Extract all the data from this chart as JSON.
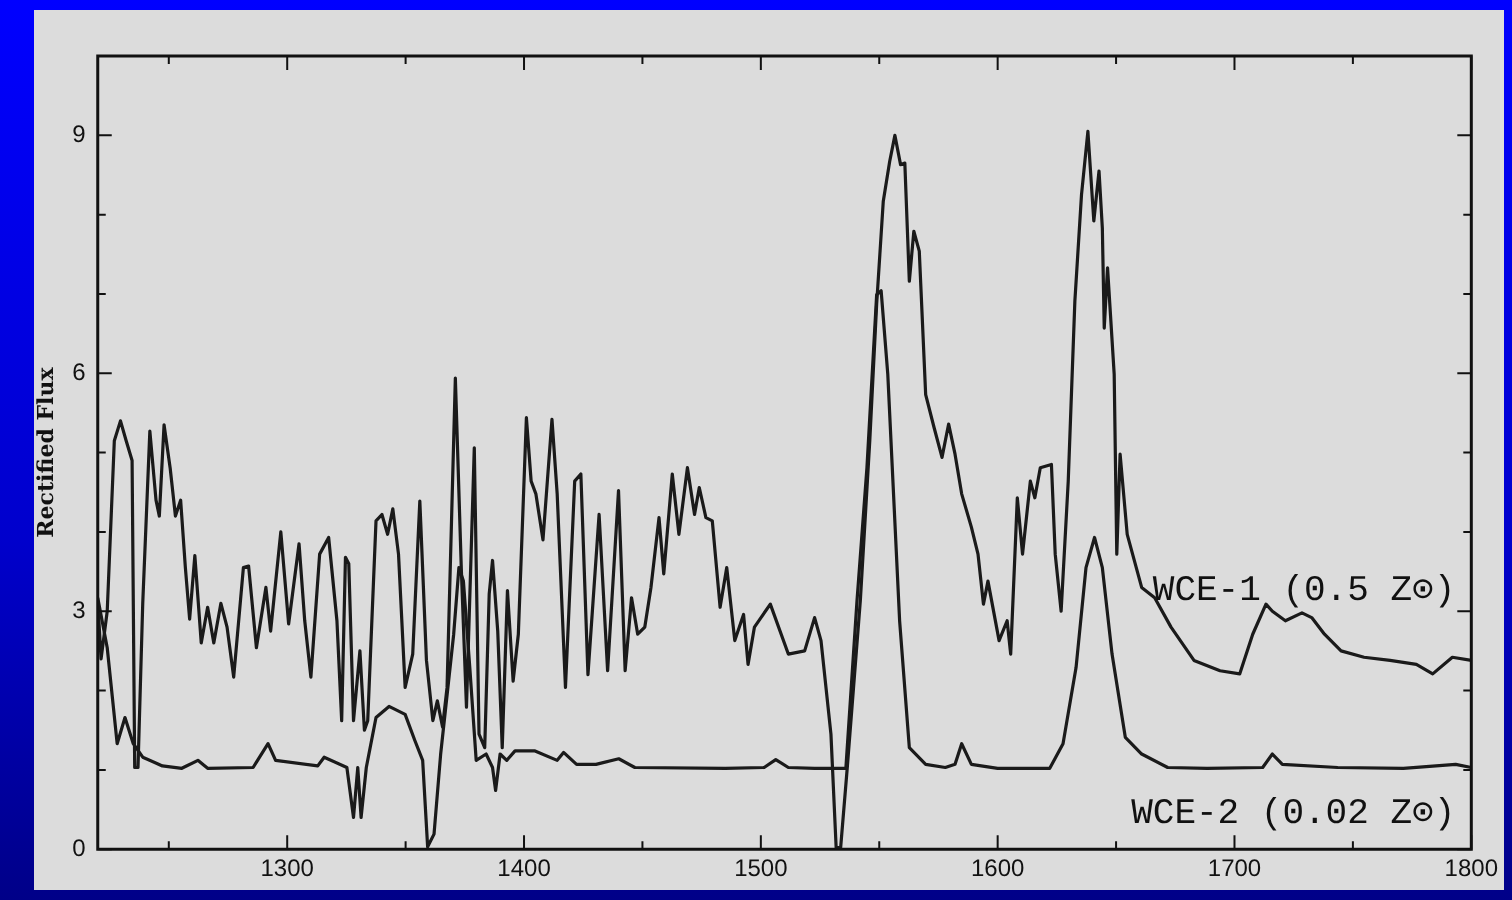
{
  "chart_data": {
    "type": "line",
    "ylabel": "Rectified Flux",
    "xlim": [
      1220,
      1800
    ],
    "ylim": [
      0,
      10
    ],
    "xticks": [
      {
        "value": 1250,
        "label": null
      },
      1300,
      {
        "value": 1350,
        "label": null
      },
      1400,
      {
        "value": 1450,
        "label": null
      },
      1500,
      {
        "value": 1550,
        "label": null
      },
      1600,
      {
        "value": 1650,
        "label": null
      },
      1700,
      {
        "value": 1750,
        "label": null
      },
      1800
    ],
    "yticks": [
      0,
      {
        "value": 1,
        "label": null
      },
      {
        "value": 2,
        "label": null
      },
      3,
      {
        "value": 4,
        "label": null
      },
      {
        "value": 5,
        "label": null
      },
      6,
      {
        "value": 7,
        "label": null
      },
      {
        "value": 8,
        "label": null
      },
      9
    ],
    "grid": false,
    "legend": "right",
    "marker": "none",
    "line_style": "solid",
    "series": [
      {
        "name": "WCE-1 (0.5 Z⊙)",
        "color": "#1a1a1a",
        "x": [
          1220,
          1221.4,
          1224,
          1227,
          1229.6,
          1232,
          1234.5,
          1235.6,
          1237,
          1239,
          1242,
          1244.6,
          1246,
          1248,
          1250.6,
          1252.8,
          1255,
          1257,
          1258.8,
          1261,
          1263.7,
          1266.4,
          1269,
          1272,
          1274.6,
          1277.4,
          1281.5,
          1283.7,
          1287,
          1291,
          1293,
          1297.3,
          1300.6,
          1305,
          1307.4,
          1310,
          1313.7,
          1317.5,
          1321,
          1323,
          1324.6,
          1326,
          1328,
          1330.7,
          1332.6,
          1334,
          1337.5,
          1340,
          1342.4,
          1344.6,
          1347,
          1349.8,
          1353,
          1356,
          1358.8,
          1361.5,
          1363.4,
          1365.6,
          1367.5,
          1371,
          1373.5,
          1375.7,
          1379,
          1381,
          1383.4,
          1385.3,
          1386.7,
          1388.9,
          1390.8,
          1393,
          1395.4,
          1397.6,
          1401,
          1403,
          1405,
          1408,
          1411.8,
          1414,
          1417.5,
          1421.4,
          1424,
          1427,
          1431.7,
          1435.3,
          1439.9,
          1442.7,
          1445.4,
          1448,
          1451,
          1453.6,
          1457,
          1459,
          1462.6,
          1465.4,
          1469,
          1472,
          1474,
          1476.8,
          1479.5,
          1482.8,
          1485.6,
          1489,
          1492.7,
          1494.6,
          1497.3,
          1504,
          1511.6,
          1518.5,
          1522.7,
          1525.4,
          1529.6,
          1531.8,
          1533.7,
          1536.5,
          1542,
          1546,
          1548.9,
          1551.7,
          1554.4,
          1556.6,
          1559,
          1560.8,
          1562.7,
          1564.6,
          1566.9,
          1569.6,
          1573.2,
          1576.5,
          1579.3,
          1582,
          1584.8,
          1588.9,
          1591.7,
          1594,
          1595.9,
          1600.6,
          1604,
          1605.5,
          1608.3,
          1610.5,
          1613.8,
          1615.7,
          1618,
          1622.7,
          1624.3,
          1626.8,
          1629.8,
          1632.6,
          1635.4,
          1638.1,
          1640.6,
          1642.8,
          1644.2,
          1645,
          1646.4,
          1649.2,
          1650.3,
          1651.7,
          1654.7,
          1660.8,
          1666.3,
          1673.2,
          1682.9,
          1693.9,
          1702.2,
          1707.7,
          1713.3,
          1716,
          1721.5,
          1728.5,
          1732.6,
          1738,
          1745,
          1754.7,
          1765.7,
          1776.8,
          1783.7,
          1792,
          1800
        ],
        "values": [
          3.13,
          2.4,
          3.0,
          5.15,
          5.4,
          5.15,
          4.9,
          1.03,
          1.03,
          3.1,
          5.27,
          4.4,
          4.2,
          5.35,
          4.8,
          4.2,
          4.4,
          3.55,
          2.9,
          3.7,
          2.6,
          3.05,
          2.6,
          3.1,
          2.8,
          2.17,
          3.55,
          3.57,
          2.54,
          3.3,
          2.75,
          4.0,
          2.84,
          3.85,
          2.88,
          2.17,
          3.72,
          3.93,
          2.88,
          1.62,
          3.68,
          3.6,
          1.62,
          2.5,
          1.5,
          1.62,
          4.14,
          4.22,
          3.97,
          4.29,
          3.72,
          2.04,
          2.46,
          4.39,
          2.38,
          1.62,
          1.87,
          1.54,
          2.04,
          5.94,
          3.55,
          1.79,
          5.06,
          1.45,
          1.28,
          3.22,
          3.64,
          2.75,
          1.28,
          3.26,
          2.12,
          2.71,
          5.44,
          4.64,
          4.48,
          3.9,
          5.42,
          4.48,
          2.04,
          4.64,
          4.73,
          2.2,
          4.22,
          2.25,
          4.52,
          2.25,
          3.17,
          2.71,
          2.8,
          3.3,
          4.18,
          3.47,
          4.73,
          3.97,
          4.81,
          4.22,
          4.56,
          4.18,
          4.14,
          3.05,
          3.55,
          2.63,
          2.96,
          2.33,
          2.8,
          3.09,
          2.46,
          2.5,
          2.92,
          2.63,
          1.45,
          0.02,
          0.02,
          1.03,
          3.13,
          5.15,
          6.87,
          8.17,
          8.67,
          9.0,
          8.63,
          8.65,
          7.16,
          7.79,
          7.54,
          5.73,
          5.31,
          4.94,
          5.36,
          4.98,
          4.48,
          4.06,
          3.72,
          3.09,
          3.38,
          2.63,
          2.88,
          2.46,
          4.43,
          3.72,
          4.64,
          4.43,
          4.81,
          4.85,
          3.72,
          3.0,
          4.64,
          6.91,
          8.25,
          9.05,
          7.92,
          8.55,
          7.83,
          6.57,
          7.33,
          5.99,
          3.72,
          4.98,
          3.97,
          3.3,
          3.17,
          2.8,
          2.38,
          2.25,
          2.21,
          2.71,
          3.09,
          3.0,
          2.88,
          2.98,
          2.92,
          2.71,
          2.5,
          2.42,
          2.38,
          2.33,
          2.21,
          2.42,
          2.38
        ]
      },
      {
        "name": "WCE-2 (0.02 Z⊙)",
        "color": "#1a1a1a",
        "x": [
          1220,
          1224,
          1228.2,
          1231.5,
          1235,
          1239,
          1247.3,
          1255.5,
          1262.3,
          1266.4,
          1285.6,
          1291.9,
          1295.1,
          1312.9,
          1315.6,
          1325.2,
          1328,
          1329.8,
          1331.2,
          1333.4,
          1337.5,
          1343,
          1349.8,
          1353.9,
          1357.2,
          1359.3,
          1362,
          1364.8,
          1370.3,
          1372.5,
          1374.4,
          1377.1,
          1379.8,
          1384,
          1386.7,
          1388,
          1389.9,
          1392.7,
          1396.2,
          1404.4,
          1414,
          1416.7,
          1422.2,
          1430.4,
          1440,
          1446.8,
          1485,
          1501.4,
          1506.3,
          1511.6,
          1522.7,
          1535.9,
          1540.6,
          1544.8,
          1548.9,
          1550.8,
          1553.6,
          1558.6,
          1562.7,
          1569.6,
          1577.9,
          1582,
          1584.8,
          1588.9,
          1600,
          1622,
          1627.6,
          1633.1,
          1637.3,
          1640.9,
          1644.2,
          1648.3,
          1653.9,
          1660.8,
          1671.8,
          1688.4,
          1711.9,
          1716,
          1720.2,
          1743.6,
          1771.3,
          1793.4,
          1800
        ],
        "values": [
          3.17,
          2.54,
          1.33,
          1.66,
          1.33,
          1.16,
          1.05,
          1.02,
          1.12,
          1.02,
          1.03,
          1.33,
          1.12,
          1.05,
          1.16,
          1.03,
          0.4,
          1.03,
          0.4,
          1.03,
          1.66,
          1.8,
          1.7,
          1.37,
          1.12,
          0.03,
          0.19,
          1.2,
          2.71,
          3.55,
          3.38,
          2.29,
          1.12,
          1.2,
          1.03,
          0.74,
          1.2,
          1.12,
          1.24,
          1.24,
          1.12,
          1.22,
          1.07,
          1.07,
          1.14,
          1.03,
          1.02,
          1.03,
          1.13,
          1.03,
          1.02,
          1.02,
          3.13,
          4.81,
          6.99,
          7.04,
          5.99,
          2.88,
          1.28,
          1.07,
          1.03,
          1.07,
          1.33,
          1.07,
          1.02,
          1.02,
          1.33,
          2.29,
          3.55,
          3.93,
          3.55,
          2.46,
          1.41,
          1.2,
          1.03,
          1.02,
          1.03,
          1.2,
          1.07,
          1.03,
          1.02,
          1.07,
          1.03
        ]
      }
    ]
  }
}
